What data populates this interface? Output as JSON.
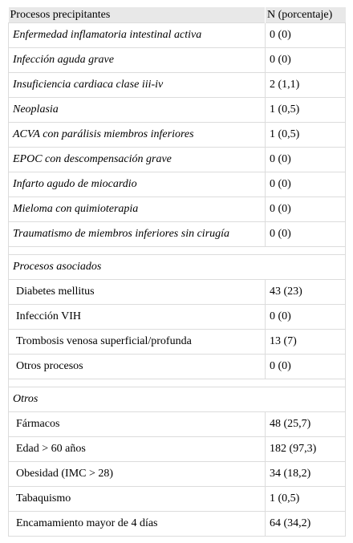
{
  "header": {
    "col1": "Procesos precipitantes",
    "col2": "N (porcentaje)"
  },
  "precipitantes": [
    {
      "label": "Enfermedad inflamatoria intestinal activa",
      "value": "0 (0)"
    },
    {
      "label": "Infección aguda grave",
      "value": "0 (0)"
    },
    {
      "label": "Insuficiencia cardiaca clase iii-iv",
      "value": "2 (1,1)"
    },
    {
      "label": "Neoplasia",
      "value": "1 (0,5)"
    },
    {
      "label": "ACVA con parálisis miembros inferiores",
      "value": "1 (0,5)"
    },
    {
      "label": "EPOC con descompensación grave",
      "value": "0 (0)"
    },
    {
      "label": "Infarto agudo de miocardio",
      "value": "0 (0)"
    },
    {
      "label": "Mieloma con quimioterapia",
      "value": "0 (0)"
    },
    {
      "label": "Traumatismo de miembros inferiores sin cirugía",
      "value": "0 (0)"
    }
  ],
  "asociados": {
    "title": "Procesos asociados",
    "rows": [
      {
        "label": "Diabetes mellitus",
        "value": "43 (23)"
      },
      {
        "label": "Infección VIH",
        "value": "0 (0)"
      },
      {
        "label": "Trombosis venosa superficial/profunda",
        "value": "13 (7)"
      },
      {
        "label": "Otros procesos",
        "value": "0 (0)"
      }
    ]
  },
  "otros": {
    "title": "Otros",
    "rows": [
      {
        "label": "Fármacos",
        "value": "48 (25,7)"
      },
      {
        "label": "Edad > 60 años",
        "value": "182 (97,3)"
      },
      {
        "label": "Obesidad (IMC > 28)",
        "value": "34 (18,2)"
      },
      {
        "label": "Tabaquismo",
        "value": "1 (0,5)"
      },
      {
        "label": "Encamamiento mayor de 4 días",
        "value": "64 (34,2)"
      }
    ]
  }
}
